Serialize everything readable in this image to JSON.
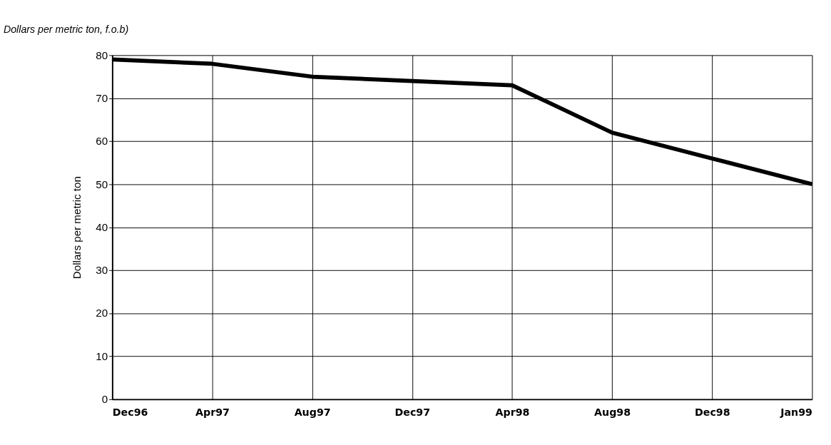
{
  "chart_data": {
    "type": "line",
    "title": "Dollars per metric ton, f.o.b)",
    "ylabel": "Dollars per metric ton",
    "categories": [
      "Dec96",
      "Apr97",
      "Aug97",
      "Dec97",
      "Apr98",
      "Aug98",
      "Dec98",
      "Jan99"
    ],
    "series": [
      {
        "color": "#000000",
        "values": [
          79,
          78,
          75,
          74,
          73,
          62,
          56,
          50
        ]
      }
    ],
    "ylim": [
      0,
      80
    ],
    "yticks": [
      0,
      10,
      20,
      30,
      40,
      50,
      60,
      70,
      80
    ],
    "grid": true,
    "marker": "none",
    "line_style": "solid"
  }
}
